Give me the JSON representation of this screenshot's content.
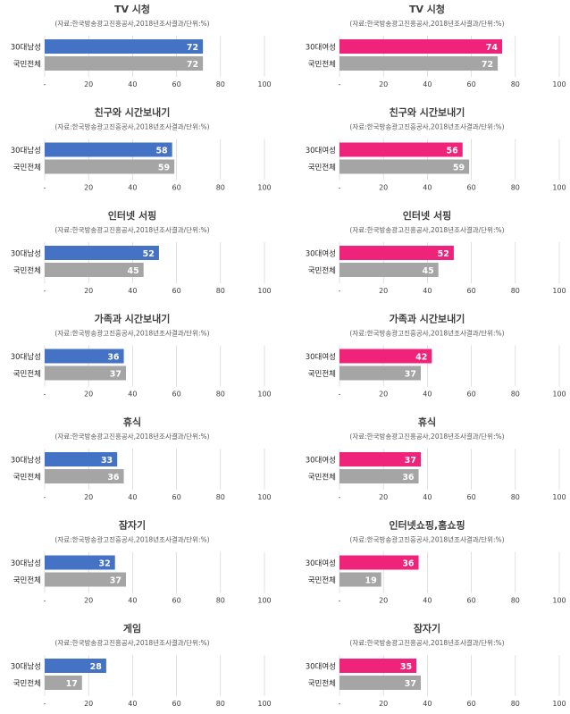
{
  "source_note": "(자료:한국방송광고진흥공사,2018년조사결과/단위:%)",
  "row_labels": {
    "male": "30대남성",
    "female": "30대여성",
    "total": "국민전체"
  },
  "x_ticks": [
    "-",
    "20",
    "40",
    "60",
    "80",
    "100"
  ],
  "colors": {
    "male": "#4472c4",
    "female": "#f0237b",
    "total": "#a5a5a5",
    "grid": "#d9d9d9",
    "title": "#3f3f3f"
  },
  "chart_data": [
    {
      "type": "bar",
      "panel": "male",
      "title": "TV 시청",
      "source": "(자료:한국방송광고진흥공사,2018년조사결과/단위:%)",
      "categories": [
        "30대남성",
        "국민전체"
      ],
      "values": [
        72,
        72
      ],
      "xlim": [
        0,
        100
      ]
    },
    {
      "type": "bar",
      "panel": "female",
      "title": "TV 시청",
      "source": "(자료:한국방송광고진흥공사,2018년조사결과/단위:%)",
      "categories": [
        "30대여성",
        "국민전체"
      ],
      "values": [
        74,
        72
      ],
      "xlim": [
        0,
        100
      ]
    },
    {
      "type": "bar",
      "panel": "male",
      "title": "친구와 시간보내기",
      "source": "(자료:한국방송광고진흥공사,2018년조사결과/단위:%)",
      "categories": [
        "30대남성",
        "국민전체"
      ],
      "values": [
        58,
        59
      ],
      "xlim": [
        0,
        100
      ]
    },
    {
      "type": "bar",
      "panel": "female",
      "title": "친구와 시간보내기",
      "source": "(자료:한국방송광고진흥공사,2018년조사결과/단위:%)",
      "categories": [
        "30대여성",
        "국민전체"
      ],
      "values": [
        56,
        59
      ],
      "xlim": [
        0,
        100
      ]
    },
    {
      "type": "bar",
      "panel": "male",
      "title": "인터넷 서핑",
      "source": "(자료:한국방송광고진흥공사,2018년조사결과/단위:%)",
      "categories": [
        "30대남성",
        "국민전체"
      ],
      "values": [
        52,
        45
      ],
      "xlim": [
        0,
        100
      ]
    },
    {
      "type": "bar",
      "panel": "female",
      "title": "인터넷 서핑",
      "source": "(자료:한국방송광고진흥공사,2018년조사결과/단위:%)",
      "categories": [
        "30대여성",
        "국민전체"
      ],
      "values": [
        52,
        45
      ],
      "xlim": [
        0,
        100
      ]
    },
    {
      "type": "bar",
      "panel": "male",
      "title": "가족과 시간보내기",
      "source": "(자료:한국방송광고진흥공사,2018년조사결과/단위:%)",
      "categories": [
        "30대남성",
        "국민전체"
      ],
      "values": [
        36,
        37
      ],
      "xlim": [
        0,
        100
      ]
    },
    {
      "type": "bar",
      "panel": "female",
      "title": "가족과 시간보내기",
      "source": "(자료:한국방송광고진흥공사,2018년조사결과/단위:%)",
      "categories": [
        "30대여성",
        "국민전체"
      ],
      "values": [
        42,
        37
      ],
      "xlim": [
        0,
        100
      ]
    },
    {
      "type": "bar",
      "panel": "male",
      "title": "휴식",
      "source": "(자료:한국방송광고진흥공사,2018년조사결과/단위:%)",
      "categories": [
        "30대남성",
        "국민전체"
      ],
      "values": [
        33,
        36
      ],
      "xlim": [
        0,
        100
      ]
    },
    {
      "type": "bar",
      "panel": "female",
      "title": "휴식",
      "source": "(자료:한국방송광고진흥공사,2018년조사결과/단위:%)",
      "categories": [
        "30대여성",
        "국민전체"
      ],
      "values": [
        37,
        36
      ],
      "xlim": [
        0,
        100
      ]
    },
    {
      "type": "bar",
      "panel": "male",
      "title": "잠자기",
      "source": "(자료:한국방송광고진흥공사,2018년조사결과/단위:%)",
      "categories": [
        "30대남성",
        "국민전체"
      ],
      "values": [
        32,
        37
      ],
      "xlim": [
        0,
        100
      ]
    },
    {
      "type": "bar",
      "panel": "female",
      "title": "인터넷쇼핑,홈쇼핑",
      "source": "(자료:한국방송광고진흥공사,2018년조사결과/단위:%)",
      "categories": [
        "30대여성",
        "국민전체"
      ],
      "values": [
        36,
        19
      ],
      "xlim": [
        0,
        100
      ]
    },
    {
      "type": "bar",
      "panel": "male",
      "title": "게임",
      "source": "(자료:한국방송광고진흥공사,2018년조사결과/단위:%)",
      "categories": [
        "30대남성",
        "국민전체"
      ],
      "values": [
        28,
        17
      ],
      "xlim": [
        0,
        100
      ]
    },
    {
      "type": "bar",
      "panel": "female",
      "title": "잠자기",
      "source": "(자료:한국방송광고진흥공사,2018년조사결과/단위:%)",
      "categories": [
        "30대여성",
        "국민전체"
      ],
      "values": [
        35,
        37
      ],
      "xlim": [
        0,
        100
      ]
    }
  ]
}
